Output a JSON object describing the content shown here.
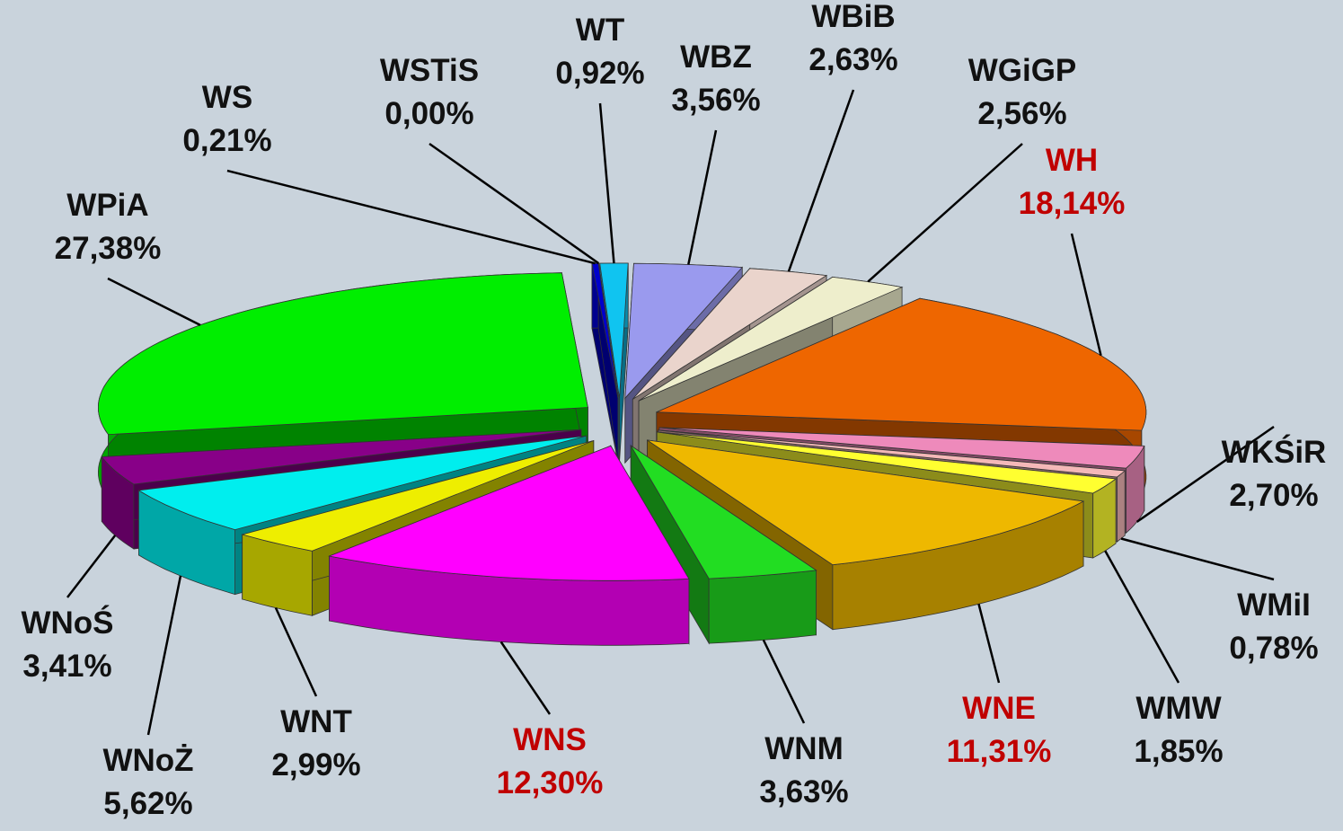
{
  "chart_data": {
    "type": "pie3d",
    "categories": [
      "WT",
      "WBZ",
      "WBiB",
      "WGiGP",
      "WH",
      "WKŚiR",
      "WMiI",
      "WMW",
      "WNE",
      "WNM",
      "WNS",
      "WNT",
      "WNoŻ",
      "WNoŚ",
      "WPiA",
      "WS",
      "WSTiS"
    ],
    "values": [
      0.92,
      3.56,
      2.63,
      2.56,
      18.14,
      2.7,
      0.78,
      1.85,
      11.31,
      3.63,
      12.3,
      2.99,
      5.62,
      3.41,
      27.38,
      0.21,
      0.0
    ],
    "value_labels": [
      "0,92%",
      "3,56%",
      "2,63%",
      "2,56%",
      "18,14%",
      "2,70%",
      "0,78%",
      "1,85%",
      "11,31%",
      "3,63%",
      "12,30%",
      "2,99%",
      "5,62%",
      "3,41%",
      "27,38%",
      "0,21%",
      "0,00%"
    ],
    "colors": [
      "#10c4f0",
      "#9a9aee",
      "#ead4cc",
      "#eeeecc",
      "#ee6600",
      "#ee8abb",
      "#f4b8b8",
      "#ffff30",
      "#eeb800",
      "#22dd22",
      "#ff00ff",
      "#eeee00",
      "#00eeee",
      "#880088",
      "#00ee00",
      "#0000cc",
      "#007070"
    ],
    "label_colors": [
      "#111111",
      "#111111",
      "#111111",
      "#111111",
      "#c00000",
      "#111111",
      "#111111",
      "#111111",
      "#c00000",
      "#111111",
      "#c00000",
      "#111111",
      "#111111",
      "#111111",
      "#111111",
      "#111111",
      "#111111"
    ]
  }
}
